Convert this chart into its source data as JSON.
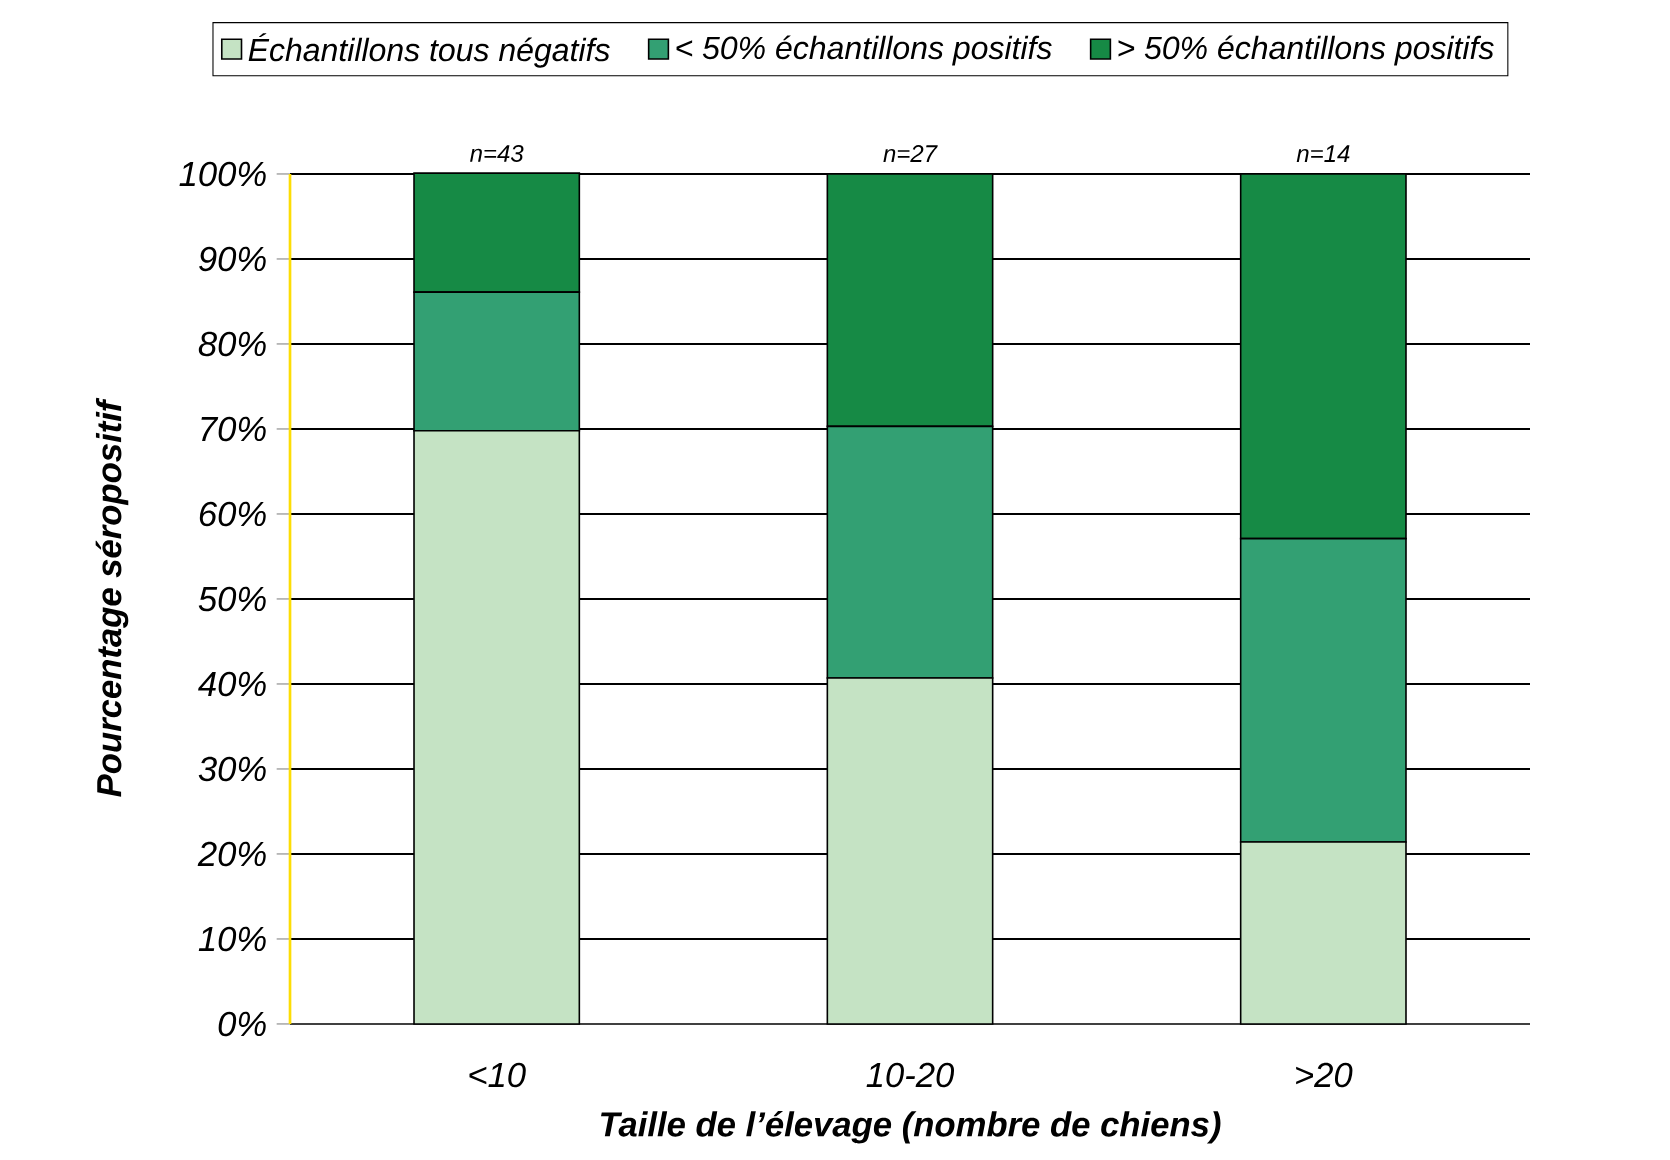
{
  "chart_data": {
    "type": "bar",
    "stacked": true,
    "categories": [
      "<10",
      "10-20",
      ">20"
    ],
    "series": [
      {
        "name": "Échantillons tous négatifs",
        "color": "#c5e3c4",
        "values": [
          69.8,
          40.7,
          21.4
        ]
      },
      {
        "name": "< 50% échantillons positifs",
        "color": "#33a073",
        "values": [
          16.3,
          29.6,
          35.7
        ]
      },
      {
        "name": "> 50% échantillons positifs",
        "color": "#168a45",
        "values": [
          14.0,
          29.7,
          42.9
        ]
      }
    ],
    "xlabel": "Taille de l’élevage (nombre de chiens)",
    "ylabel": "Pourcentage séropositif",
    "ylim": [
      0,
      100
    ],
    "yticks": [
      {
        "value": 0,
        "label": "0%"
      },
      {
        "value": 10,
        "label": "10%"
      },
      {
        "value": 20,
        "label": "20%"
      },
      {
        "value": 30,
        "label": "30%"
      },
      {
        "value": 40,
        "label": "40%"
      },
      {
        "value": 50,
        "label": "50%"
      },
      {
        "value": 60,
        "label": "60%"
      },
      {
        "value": 70,
        "label": "70%"
      },
      {
        "value": 80,
        "label": "80%"
      },
      {
        "value": 90,
        "label": "90%"
      },
      {
        "value": 100,
        "label": "100%"
      }
    ],
    "annotations": [
      {
        "text": "n=43",
        "x": "<10",
        "y": 100
      },
      {
        "text": "n=27",
        "x": "10-20",
        "y": 100
      },
      {
        "text": "n=14",
        "x": ">20",
        "y": 100
      }
    ],
    "grid": "y",
    "legend": "top"
  }
}
